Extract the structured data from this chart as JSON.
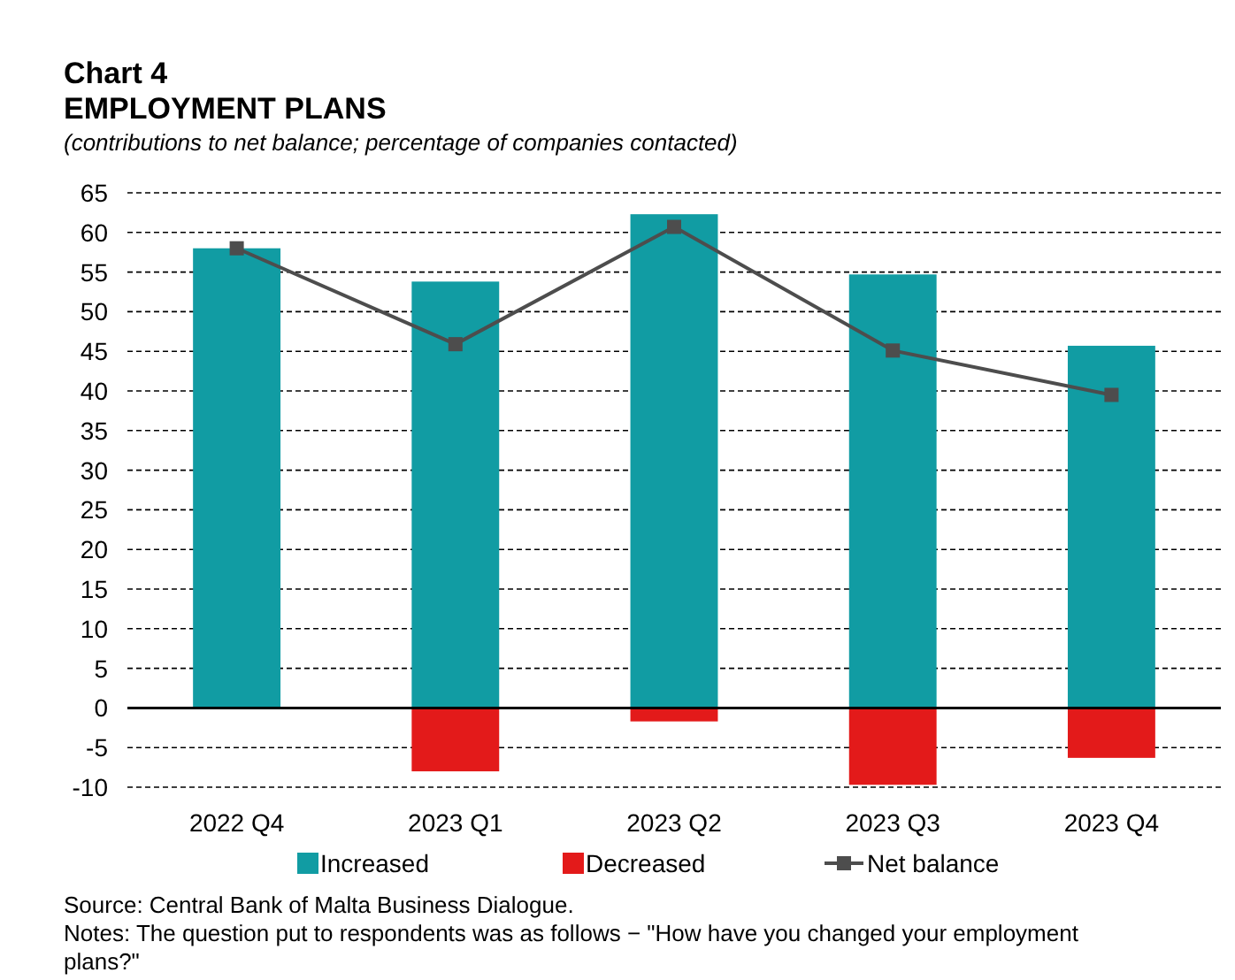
{
  "chart_data": {
    "type": "bar",
    "stacked": true,
    "title": "Chart 4",
    "subtitle": "EMPLOYMENT PLANS",
    "ylabel": "(contributions to net balance; percentage of companies contacted)",
    "categories": [
      "2022 Q4",
      "2023 Q1",
      "2023 Q2",
      "2023 Q3",
      "2023 Q4"
    ],
    "series": [
      {
        "name": "Increased",
        "color": "#119ca3",
        "values": [
          58.0,
          53.8,
          62.3,
          54.7,
          45.7
        ]
      },
      {
        "name": "Decreased",
        "color": "#e31a1a",
        "values": [
          0,
          -8.0,
          -1.7,
          -9.7,
          -6.3
        ]
      },
      {
        "name": "Net balance",
        "type": "line",
        "color": "#4d4d4d",
        "marker": "square",
        "values": [
          58.0,
          45.9,
          60.7,
          45.1,
          39.5
        ]
      }
    ],
    "ylim": [
      -10,
      65
    ],
    "yticks": [
      -10,
      -5,
      0,
      5,
      10,
      15,
      20,
      25,
      30,
      35,
      40,
      45,
      50,
      55,
      60,
      65
    ],
    "grid": "y",
    "legend": "bottom",
    "annotations": [
      "Source: Central Bank of Malta Business Dialogue.",
      "Notes: The question put to respondents was as follows − \"How have you changed your employment plans?\""
    ]
  }
}
